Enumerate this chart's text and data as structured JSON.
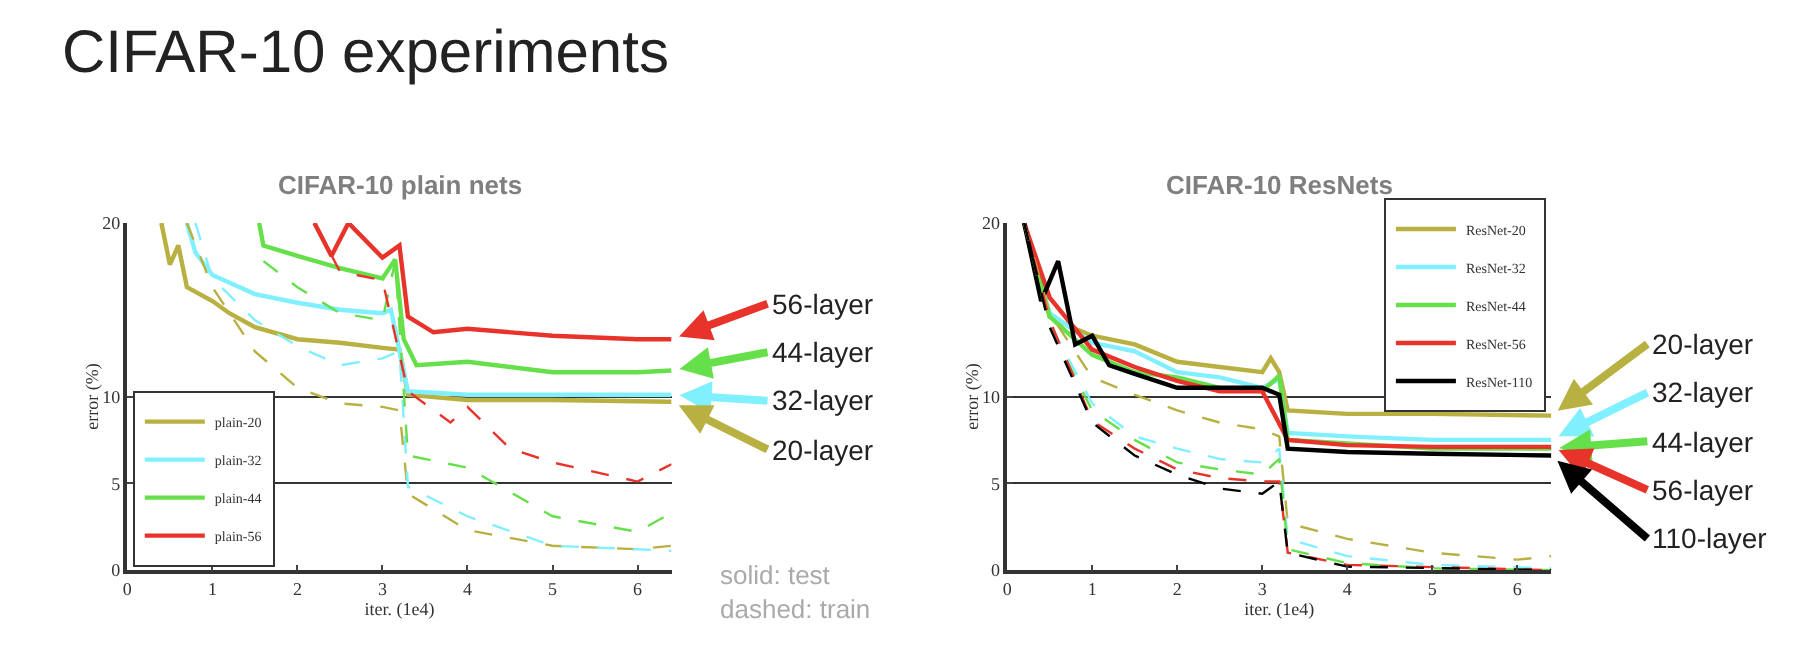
{
  "chart_data": [
    {
      "type": "line",
      "title": "CIFAR-10 plain nets",
      "xlabel": "iter. (1e4)",
      "ylabel": "error (%)",
      "xlim": [
        0,
        6.4
      ],
      "xticks": [
        0,
        1,
        2,
        3,
        4,
        5,
        6
      ],
      "ylim": [
        0,
        20
      ],
      "yticks": [
        0,
        5,
        10,
        20
      ],
      "grid": "y",
      "legend": "bottom left",
      "line_style": "solid",
      "annotations": [
        "CIFAR-10 experiments",
        "solid: test\ndashed: train",
        "56-layer",
        "44-layer",
        "32-layer",
        "20-layer"
      ],
      "series": [
        {
          "name": "plain-20",
          "color": "#b8b040",
          "x": [
            0.4,
            0.5,
            0.6,
            0.7,
            1.0,
            1.2,
            1.5,
            2.0,
            2.5,
            3.0,
            3.2,
            3.3,
            4.0,
            5.0,
            6.4
          ],
          "values": [
            20,
            17.6,
            18.7,
            16.3,
            15.5,
            14.8,
            14,
            13.3,
            13.1,
            12.8,
            12.7,
            10.1,
            9.8,
            9.8,
            9.7
          ]
        },
        {
          "name": "plain-32",
          "color": "#80f0ff",
          "x": [
            0.7,
            0.8,
            1.0,
            1.5,
            2.0,
            2.5,
            3.0,
            3.1,
            3.3,
            4.0,
            5.0,
            6.4
          ],
          "values": [
            20,
            18.3,
            17,
            15.9,
            15.4,
            15,
            14.8,
            15,
            10.3,
            10.1,
            10.1,
            10.1
          ]
        },
        {
          "name": "plain-44",
          "color": "#66e04a",
          "x": [
            1.55,
            1.6,
            2.0,
            2.5,
            3.0,
            3.15,
            3.25,
            3.4,
            4.0,
            5.0,
            6.0,
            6.4
          ],
          "values": [
            20,
            18.7,
            18.1,
            17.4,
            16.8,
            17.9,
            13.3,
            11.8,
            12,
            11.4,
            11.4,
            11.5
          ]
        },
        {
          "name": "plain-56",
          "color": "#e8332a",
          "x": [
            2.2,
            2.4,
            2.6,
            3.0,
            3.2,
            3.3,
            3.6,
            4.0,
            5.0,
            6.0,
            6.4
          ],
          "values": [
            20,
            18.1,
            20,
            18,
            18.7,
            14.6,
            13.7,
            13.9,
            13.5,
            13.3,
            13.3
          ]
        },
        {
          "color": "#b8b040",
          "line_style": "dashed",
          "x": [
            0.7,
            1.0,
            1.5,
            2.0,
            2.5,
            3.0,
            3.2,
            3.3,
            4.0,
            5.0,
            6.0,
            6.4
          ],
          "values": [
            20,
            16.3,
            12.6,
            10.5,
            9.6,
            9.4,
            9.2,
            4.4,
            2.3,
            1.4,
            1.2,
            1.4
          ]
        },
        {
          "color": "#80f0ff",
          "line_style": "dashed",
          "x": [
            0.8,
            1.0,
            1.5,
            2.0,
            2.5,
            3.0,
            3.2,
            3.3,
            4.0,
            5.0,
            6.0,
            6.4
          ],
          "values": [
            20,
            16.8,
            14.4,
            12.9,
            11.8,
            12.2,
            12.6,
            4.8,
            3.1,
            1.4,
            1.2,
            1.1
          ]
        },
        {
          "color": "#66e04a",
          "line_style": "dashed",
          "x": [
            1.6,
            2.0,
            2.5,
            3.0,
            3.15,
            3.3,
            4.0,
            5.0,
            6.0,
            6.4
          ],
          "values": [
            17.8,
            16.3,
            14.8,
            14.4,
            17.8,
            6.6,
            5.9,
            3.1,
            2.2,
            3.3
          ]
        },
        {
          "color": "#e8332a",
          "line_style": "dashed",
          "x": [
            2.2,
            2.5,
            3.0,
            3.3,
            3.8,
            4.0,
            4.5,
            5.0,
            6.0,
            6.4
          ],
          "values": [
            20,
            17.2,
            16.7,
            10.3,
            8.5,
            9.4,
            7,
            6.2,
            5.1,
            6.1
          ]
        }
      ]
    },
    {
      "type": "line",
      "title": "CIFAR-10 ResNets",
      "xlabel": "iter. (1e4)",
      "ylabel": "error (%)",
      "xlim": [
        0,
        6.4
      ],
      "xticks": [
        0,
        1,
        2,
        3,
        4,
        5,
        6
      ],
      "ylim": [
        0,
        20
      ],
      "yticks": [
        0,
        5,
        10,
        20
      ],
      "grid": "y",
      "legend": "top right",
      "line_style": "solid",
      "annotations": [
        "20-layer",
        "32-layer",
        "44-layer",
        "56-layer",
        "110-layer"
      ],
      "series": [
        {
          "name": "ResNet-20",
          "color": "#b8b040",
          "x": [
            0.2,
            0.5,
            0.8,
            1.0,
            1.5,
            2.0,
            2.5,
            3.0,
            3.1,
            3.2,
            3.3,
            4.0,
            5.0,
            6.4
          ],
          "values": [
            20,
            14.6,
            13.9,
            13.5,
            13,
            12,
            11.7,
            11.4,
            12.2,
            11.4,
            9.2,
            9,
            9,
            8.9
          ]
        },
        {
          "name": "ResNet-32",
          "color": "#80f0ff",
          "x": [
            0.2,
            0.5,
            1.0,
            1.5,
            2.0,
            2.5,
            3.0,
            3.2,
            3.3,
            4.0,
            5.0,
            6.4
          ],
          "values": [
            20,
            14.8,
            13.1,
            12.6,
            11.4,
            11.1,
            10.5,
            11,
            7.9,
            7.7,
            7.5,
            7.5
          ]
        },
        {
          "name": "ResNet-44",
          "color": "#66e04a",
          "x": [
            0.2,
            0.5,
            1.0,
            1.5,
            2.0,
            2.5,
            3.0,
            3.2,
            3.3,
            4.0,
            5.0,
            6.4
          ],
          "values": [
            20,
            14.6,
            12.4,
            11.4,
            11.1,
            10.5,
            10.3,
            11.2,
            7.5,
            7.3,
            7,
            7
          ]
        },
        {
          "name": "ResNet-56",
          "color": "#e8332a",
          "x": [
            0.2,
            0.5,
            1.0,
            1.5,
            2.0,
            2.5,
            3.0,
            3.3,
            4.0,
            5.0,
            6.4
          ],
          "values": [
            20,
            15.7,
            12.7,
            11.7,
            10.9,
            10.3,
            10.3,
            7.5,
            7.2,
            7.1,
            7.1
          ]
        },
        {
          "name": "ResNet-110",
          "color": "#000000",
          "x": [
            0.2,
            0.4,
            0.6,
            0.8,
            1.0,
            1.2,
            1.5,
            2.0,
            2.5,
            3.0,
            3.2,
            3.3,
            4.0,
            5.0,
            6.4
          ],
          "values": [
            20,
            15.5,
            17.8,
            13,
            13.5,
            11.8,
            11.3,
            10.5,
            10.5,
            10.5,
            10.1,
            7,
            6.8,
            6.7,
            6.6
          ]
        },
        {
          "color": "#b8b040",
          "line_style": "dashed",
          "x": [
            0.2,
            0.5,
            1.0,
            1.5,
            2.0,
            2.5,
            3.0,
            3.2,
            3.3,
            4.0,
            5.0,
            6.0,
            6.4
          ],
          "values": [
            20,
            14.8,
            11.1,
            10.1,
            9.2,
            8.5,
            8.1,
            7.7,
            2.7,
            1.8,
            1,
            0.6,
            0.8
          ]
        },
        {
          "color": "#80f0ff",
          "line_style": "dashed",
          "x": [
            0.2,
            0.5,
            1.0,
            1.5,
            2.0,
            2.5,
            3.0,
            3.2,
            3.3,
            4.0,
            5.0,
            6.4
          ],
          "values": [
            20,
            14.2,
            9.6,
            7.7,
            7,
            6.4,
            6.2,
            7,
            1.8,
            0.8,
            0.3,
            0.1
          ]
        },
        {
          "color": "#66e04a",
          "line_style": "dashed",
          "x": [
            0.2,
            0.5,
            1.0,
            1.5,
            2.0,
            2.5,
            3.0,
            3.2,
            3.3,
            4.0,
            5.0,
            6.4
          ],
          "values": [
            20,
            14,
            9.2,
            7.5,
            6.2,
            5.8,
            5.5,
            6.4,
            1.2,
            0.4,
            0.1,
            0
          ]
        },
        {
          "color": "#e8332a",
          "line_style": "dashed",
          "x": [
            0.2,
            0.5,
            1.0,
            1.5,
            2.0,
            2.5,
            3.0,
            3.2,
            3.3,
            4.0,
            6.4
          ],
          "values": [
            20,
            14.4,
            8.6,
            7,
            5.8,
            5.3,
            5.1,
            5.1,
            1,
            0.3,
            0
          ]
        },
        {
          "color": "#000000",
          "line_style": "dashed",
          "x": [
            0.2,
            0.5,
            1.0,
            1.5,
            2.0,
            2.5,
            3.0,
            3.2,
            3.3,
            4.0,
            6.4
          ],
          "values": [
            20,
            14,
            8.5,
            6.6,
            5.5,
            4.7,
            4.4,
            5.1,
            1,
            0.2,
            0
          ]
        }
      ]
    }
  ]
}
